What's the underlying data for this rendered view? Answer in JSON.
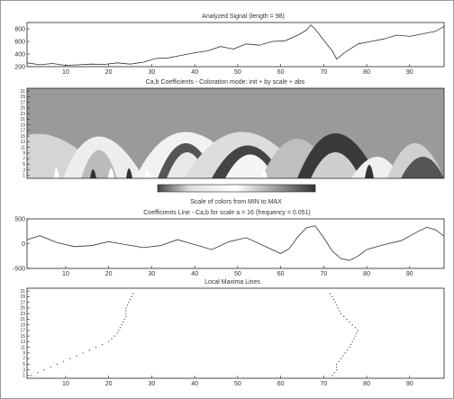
{
  "chart_data": [
    {
      "panel": "signal",
      "type": "line",
      "title": "Analyzed Signal  (length = 98)",
      "xlim": [
        1,
        98
      ],
      "ylim": [
        200,
        900
      ],
      "x_ticks": [
        10,
        20,
        30,
        40,
        50,
        60,
        70,
        80,
        90
      ],
      "y_ticks": [
        200,
        400,
        600,
        800
      ],
      "x": [
        1,
        4,
        7,
        10,
        13,
        16,
        19,
        22,
        25,
        28,
        31,
        34,
        37,
        40,
        43,
        46,
        49,
        52,
        55,
        58,
        61,
        64,
        66,
        67,
        68,
        70,
        72,
        73,
        75,
        78,
        81,
        84,
        87,
        90,
        93,
        96,
        98
      ],
      "y": [
        260,
        230,
        250,
        220,
        230,
        240,
        235,
        260,
        240,
        270,
        330,
        340,
        380,
        420,
        450,
        520,
        480,
        560,
        540,
        600,
        610,
        700,
        780,
        860,
        800,
        620,
        450,
        320,
        430,
        560,
        600,
        640,
        700,
        680,
        720,
        760,
        840
      ]
    },
    {
      "panel": "coefficients",
      "type": "heatmap",
      "title": "Ca,b Coefficients - Coloration mode: init + by scale + abs",
      "y_ticks": [
        1,
        3,
        5,
        7,
        9,
        11,
        13,
        15,
        17,
        19,
        21,
        23,
        25,
        27,
        29,
        31
      ],
      "colorbar_label": "Scale of colors from MIN to MAX"
    },
    {
      "panel": "coefficients-line",
      "type": "line",
      "title": "Coefficients Line - Ca,b for scale a = 16  (frequency =  0.051)",
      "xlim": [
        1,
        98
      ],
      "ylim": [
        -500,
        500
      ],
      "x_ticks": [
        10,
        20,
        30,
        40,
        50,
        60,
        70,
        80,
        90
      ],
      "y_ticks": [
        -500,
        0,
        500
      ],
      "x": [
        1,
        4,
        8,
        12,
        16,
        20,
        24,
        28,
        32,
        36,
        40,
        44,
        48,
        52,
        56,
        60,
        62,
        64,
        66,
        68,
        70,
        72,
        74,
        76,
        78,
        80,
        84,
        88,
        92,
        94,
        96,
        98
      ],
      "y": [
        80,
        160,
        20,
        -60,
        -40,
        40,
        -20,
        -80,
        -40,
        80,
        -20,
        -120,
        40,
        120,
        -40,
        -200,
        -100,
        140,
        320,
        360,
        120,
        -150,
        -300,
        -340,
        -250,
        -120,
        -20,
        60,
        250,
        330,
        280,
        150
      ]
    },
    {
      "panel": "maxima",
      "type": "scatter",
      "title": "Local Maxima Lines",
      "xlim": [
        1,
        98
      ],
      "x_ticks": [
        10,
        20,
        30,
        40,
        50,
        60,
        70,
        80,
        90
      ],
      "y_ticks": [
        1,
        3,
        5,
        7,
        9,
        11,
        13,
        15,
        17,
        19,
        21,
        23,
        25,
        27,
        29,
        31
      ],
      "lines": [
        {
          "x": [
            2,
            5,
            8,
            11,
            14,
            17,
            20,
            22,
            23,
            24,
            24,
            25,
            26
          ],
          "y": [
            1,
            3,
            5,
            7,
            9,
            11,
            13,
            16,
            19,
            22,
            25,
            28,
            31
          ]
        },
        {
          "x": [
            72,
            73,
            73,
            74,
            75,
            76,
            77,
            78,
            76,
            74,
            73,
            72,
            71
          ],
          "y": [
            1,
            3,
            5,
            7,
            9,
            11,
            14,
            17,
            20,
            23,
            26,
            29,
            31
          ]
        }
      ]
    }
  ]
}
